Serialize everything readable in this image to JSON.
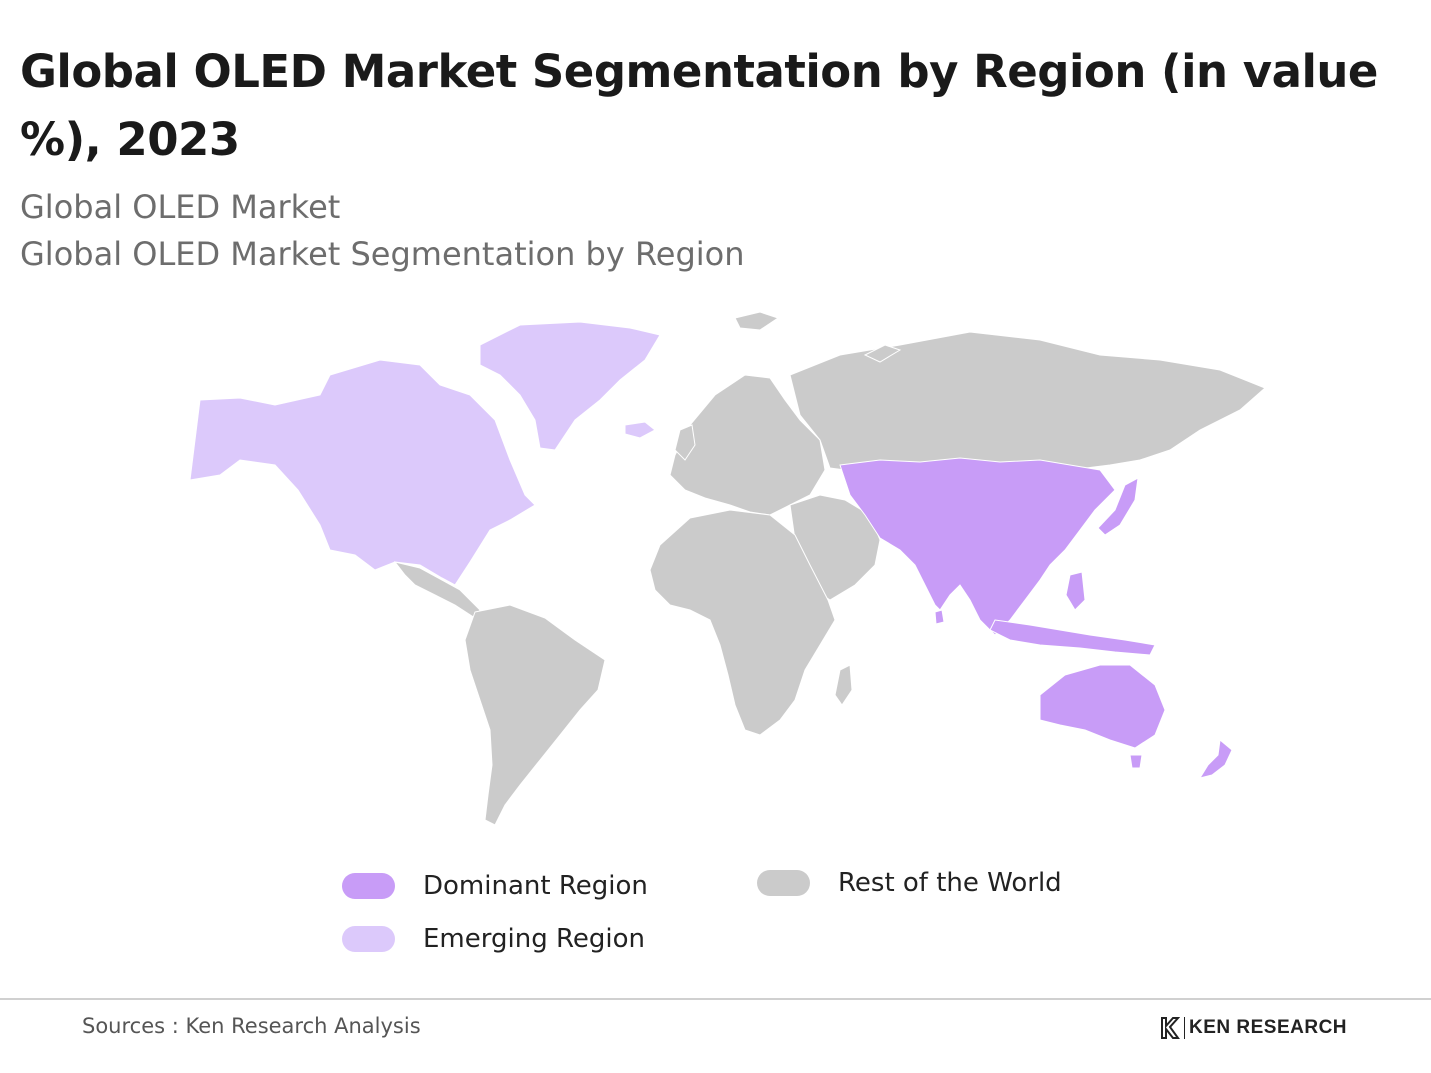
{
  "title": "Global OLED Market Segmentation by Region (in value %), 2023",
  "subtitle_line1": "Global OLED Market",
  "subtitle_line2": "Global OLED Market Segmentation by Region",
  "colors": {
    "dominant": "#c89cf7",
    "emerging": "#dcc9fb",
    "rest": "#cbcbcb",
    "divider": "#d0d0d0"
  },
  "regions": {
    "emerging": [
      "North America",
      "Greenland"
    ],
    "dominant": [
      "Asia-Pacific"
    ],
    "rest": [
      "Europe",
      "Russia",
      "Africa",
      "Middle East",
      "South America"
    ]
  },
  "legend": [
    {
      "label": "Dominant Region",
      "color": "#c89cf7"
    },
    {
      "label": "Emerging Region",
      "color": "#dcc9fb"
    },
    {
      "label": "Rest of the World",
      "color": "#cbcbcb"
    }
  ],
  "footer": {
    "source": "Sources : Ken Research Analysis",
    "brand": "KEN RESEARCH",
    "brand_icon": "ken-research-logo-icon"
  }
}
